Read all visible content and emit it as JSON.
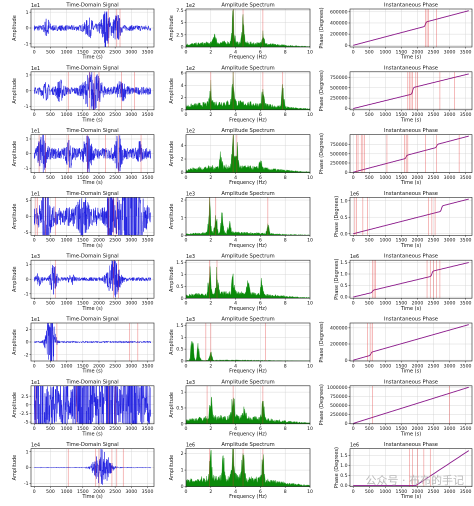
{
  "watermark": "公众号 · 布布的手记",
  "colors": {
    "time": "#1f1fe0",
    "spec": "#0a8a0a",
    "phase": "#8b1a8b",
    "marker": "#e03030",
    "grid": "#d0d0d0"
  },
  "chart_data": [
    {
      "type": "line",
      "title": "Time-Domain Signal",
      "xlabel": "Time (s)",
      "ylabel": "Amplitude",
      "exp": "1e1",
      "xlim": [
        -100,
        3700
      ],
      "ylim": [
        -1.2,
        1.2
      ],
      "xticks": [
        0,
        500,
        1000,
        1500,
        2000,
        2500,
        3000,
        3500
      ],
      "yticks": [
        -1,
        0,
        1
      ],
      "burst": [
        [
          2200,
          0.9,
          150
        ],
        [
          2550,
          0.7,
          120
        ],
        [
          400,
          0.5,
          80
        ],
        [
          1700,
          0.4,
          150
        ]
      ],
      "base": 0.15,
      "markers": [
        2300,
        2550,
        2650
      ]
    },
    {
      "type": "bar",
      "title": "Amplitude Spectrum",
      "xlabel": "Frequency (Hz)",
      "ylabel": "Amplitude",
      "exp": "1e2",
      "xlim": [
        0,
        10
      ],
      "ylim": [
        0,
        7.8
      ],
      "xticks": [
        0,
        2,
        4,
        6,
        8,
        10
      ],
      "yticks": [
        0,
        2.5,
        5,
        7.5
      ],
      "peaks": [
        [
          3.8,
          7.2
        ],
        [
          4.6,
          5.5
        ],
        [
          6.2,
          4.0
        ],
        [
          2.3,
          3.0
        ]
      ],
      "base": 1.3,
      "markers": [
        3.8,
        4.6,
        6.2
      ]
    },
    {
      "type": "line",
      "title": "Instantaneous Phase",
      "xlabel": "Time (s)",
      "ylabel": "Phase (Degrees)",
      "exp": "",
      "xlim": [
        -100,
        3700
      ],
      "ylim": [
        -30000,
        650000
      ],
      "xticks": [
        0,
        500,
        1000,
        1500,
        2000,
        2500,
        3000,
        3500
      ],
      "yticks": [
        0,
        200000,
        400000,
        600000
      ],
      "phase_end": 620000,
      "jumps": [
        [
          2250,
          0.12
        ]
      ],
      "markers": [
        2250,
        2300,
        2350,
        2600
      ]
    },
    {
      "type": "line",
      "title": "Time-Domain Signal",
      "xlabel": "Time (s)",
      "ylabel": "Amplitude",
      "exp": "1e1",
      "xlim": [
        -100,
        3700
      ],
      "ylim": [
        -1.2,
        1.2
      ],
      "xticks": [
        0,
        500,
        1000,
        1500,
        2000,
        2500,
        3000,
        3500
      ],
      "yticks": [
        -1,
        0,
        1
      ],
      "burst": [
        [
          1800,
          1.0,
          250
        ],
        [
          800,
          0.45,
          120
        ],
        [
          2700,
          0.4,
          150
        ],
        [
          350,
          0.35,
          100
        ]
      ],
      "base": 0.2,
      "markers": [
        1050,
        1700,
        1850,
        2000,
        2700,
        3100
      ]
    },
    {
      "type": "bar",
      "title": "Amplitude Spectrum",
      "xlabel": "Frequency (Hz)",
      "ylabel": "Amplitude",
      "exp": "1e2",
      "xlim": [
        0,
        10
      ],
      "ylim": [
        0,
        6.2
      ],
      "xticks": [
        0,
        2,
        4,
        6,
        8,
        10
      ],
      "yticks": [
        0,
        2,
        4,
        6
      ],
      "peaks": [
        [
          3.8,
          5.8
        ],
        [
          2.0,
          3.5
        ],
        [
          7.8,
          4.5
        ],
        [
          6.2,
          3.0
        ]
      ],
      "base": 1.6,
      "markers": [
        2.0,
        3.8,
        6.2,
        7.8
      ]
    },
    {
      "type": "line",
      "title": "Instantaneous Phase",
      "xlabel": "Time (s)",
      "ylabel": "Phase (Degrees)",
      "exp": "",
      "xlim": [
        -100,
        3700
      ],
      "ylim": [
        -30000,
        880000
      ],
      "xticks": [
        0,
        500,
        1000,
        1500,
        2000,
        2500,
        3000,
        3500
      ],
      "yticks": [
        0,
        250000,
        500000,
        750000
      ],
      "phase_end": 830000,
      "jumps": [
        [
          1850,
          0.18
        ]
      ],
      "markers": [
        1700,
        1750,
        1800,
        1850,
        1950,
        2000,
        2700,
        3150
      ]
    },
    {
      "type": "line",
      "title": "Time-Domain Signal",
      "xlabel": "Time (s)",
      "ylabel": "Amplitude",
      "exp": "1e1",
      "xlim": [
        -100,
        3700
      ],
      "ylim": [
        -1.3,
        1.3
      ],
      "xticks": [
        0,
        500,
        1000,
        1500,
        2000,
        2500,
        3000,
        3500
      ],
      "yticks": [
        -1,
        0,
        1
      ],
      "burst": [
        [
          250,
          0.9,
          120
        ],
        [
          1650,
          0.85,
          120
        ],
        [
          2600,
          0.85,
          110
        ],
        [
          1100,
          0.5,
          120
        ],
        [
          3250,
          0.4,
          80
        ]
      ],
      "base": 0.3,
      "markers": [
        150,
        350,
        1050,
        1650,
        2200,
        2600,
        3300
      ]
    },
    {
      "type": "bar",
      "title": "Amplitude Spectrum",
      "xlabel": "Frequency (Hz)",
      "ylabel": "Amplitude",
      "exp": "1e2",
      "xlim": [
        0,
        10
      ],
      "ylim": [
        0,
        5.6
      ],
      "xticks": [
        0,
        2,
        4,
        6,
        8,
        10
      ],
      "yticks": [
        0,
        2,
        4
      ],
      "peaks": [
        [
          3.8,
          5.2
        ],
        [
          4.1,
          4.0
        ],
        [
          2.8,
          2.5
        ],
        [
          6.0,
          1.8
        ]
      ],
      "base": 1.2,
      "markers": [
        3.8,
        4.1
      ]
    },
    {
      "type": "line",
      "title": "Instantaneous Phase",
      "xlabel": "Time (s)",
      "ylabel": "Phase (Degrees)",
      "exp": "",
      "xlim": [
        -100,
        3700
      ],
      "ylim": [
        -10000,
        1020000
      ],
      "xticks": [
        0,
        500,
        1000,
        1500,
        2000,
        2500,
        3000,
        3500
      ],
      "yticks": [
        0,
        250000,
        500000,
        750000
      ],
      "phase_end": 980000,
      "jumps": [
        [
          1650,
          0.08
        ],
        [
          2600,
          0.08
        ]
      ],
      "markers": [
        100,
        150,
        250,
        300,
        350,
        1050,
        1600,
        1650,
        1700,
        2250,
        2600,
        3300
      ]
    },
    {
      "type": "line",
      "title": "Time-Domain Signal",
      "xlabel": "Time (s)",
      "ylabel": "Amplitude",
      "exp": "1e1",
      "xlim": [
        -100,
        3700
      ],
      "ylim": [
        -6,
        6
      ],
      "xticks": [
        0,
        500,
        1000,
        1500,
        2000,
        2500,
        3000,
        3500
      ],
      "yticks": [
        -5,
        0,
        5
      ],
      "burst": [
        [
          2950,
          4.2,
          300
        ],
        [
          350,
          2.0,
          120
        ],
        [
          2350,
          2.2,
          80
        ],
        [
          1500,
          0.8,
          150
        ]
      ],
      "base": 0.5,
      "markers": [
        50,
        100,
        350,
        650,
        2300,
        2450,
        2550
      ]
    },
    {
      "type": "bar",
      "title": "Amplitude Spectrum",
      "xlabel": "Frequency (Hz)",
      "ylabel": "Amplitude",
      "exp": "1e3",
      "xlim": [
        0,
        10
      ],
      "ylim": [
        0,
        2.15
      ],
      "xticks": [
        0,
        2,
        4,
        6,
        8,
        10
      ],
      "yticks": [
        0,
        1,
        2
      ],
      "peaks": [
        [
          1.9,
          2.0
        ],
        [
          2.4,
          1.6
        ],
        [
          2.9,
          1.3
        ],
        [
          3.5,
          0.9
        ],
        [
          6.6,
          0.7
        ]
      ],
      "base": 0.22,
      "markers": [
        1.9,
        2.4,
        6.6
      ]
    },
    {
      "type": "line",
      "title": "Instantaneous Phase",
      "xlabel": "Time (s)",
      "ylabel": "Phase (Degrees)",
      "exp": "1e6",
      "xlim": [
        -100,
        3700
      ],
      "ylim": [
        -0.05,
        1.1
      ],
      "xticks": [
        0,
        500,
        1000,
        1500,
        2000,
        2500,
        3000,
        3500
      ],
      "yticks": [
        0,
        0.5,
        1.0
      ],
      "yfmt": 1,
      "phase_end": 1.05,
      "jumps": [
        [
          2750,
          0.15
        ]
      ],
      "markers": [
        50,
        100,
        300,
        450,
        2350,
        2450,
        2550
      ]
    },
    {
      "type": "line",
      "title": "Time-Domain Signal",
      "xlabel": "Time (s)",
      "ylabel": "Amplitude",
      "exp": "1e3",
      "xlim": [
        -100,
        3700
      ],
      "ylim": [
        -1.3,
        1.3
      ],
      "xticks": [
        0,
        500,
        1000,
        1500,
        2000,
        2500,
        3000,
        3500
      ],
      "yticks": [
        -1,
        0,
        1
      ],
      "burst": [
        [
          2450,
          1.0,
          200
        ],
        [
          600,
          0.8,
          100
        ],
        [
          150,
          0.3,
          80
        ],
        [
          1150,
          0.25,
          80
        ]
      ],
      "base": 0.1,
      "markers": [
        650,
        2450,
        2600
      ]
    },
    {
      "type": "bar",
      "title": "Amplitude Spectrum",
      "xlabel": "Frequency (Hz)",
      "ylabel": "Amplitude",
      "exp": "1e3",
      "xlim": [
        0,
        10
      ],
      "ylim": [
        0,
        1.6
      ],
      "xticks": [
        0,
        2,
        4,
        6,
        8,
        10
      ],
      "yticks": [
        0,
        0.5,
        1.0,
        1.5
      ],
      "peaks": [
        [
          1.9,
          1.5
        ],
        [
          2.5,
          1.25
        ],
        [
          3.8,
          1.0
        ],
        [
          5.0,
          0.6
        ],
        [
          6.1,
          0.7
        ]
      ],
      "base": 0.3,
      "markers": [
        1.9,
        2.5
      ]
    },
    {
      "type": "line",
      "title": "Instantaneous Phase",
      "xlabel": "Time (s)",
      "ylabel": "Phase (Degrees)",
      "exp": "1e6",
      "xlim": [
        -100,
        3700
      ],
      "ylim": [
        -0.05,
        1.6
      ],
      "xticks": [
        0,
        500,
        1000,
        1500,
        2000,
        2500,
        3000,
        3500
      ],
      "yticks": [
        0,
        0.5,
        1.0,
        1.5
      ],
      "yfmt": 1,
      "phase_end": 1.5,
      "jumps": [
        [
          600,
          0.06
        ],
        [
          2450,
          0.14
        ]
      ],
      "markers": [
        600,
        650,
        700,
        2300,
        2400,
        2500,
        2600,
        2700
      ]
    },
    {
      "type": "line",
      "title": "Time-Domain Signal",
      "xlabel": "Time (s)",
      "ylabel": "Amplitude",
      "exp": "1e1",
      "xlim": [
        -100,
        3700
      ],
      "ylim": [
        -3,
        3
      ],
      "xticks": [
        0,
        500,
        1000,
        1500,
        2000,
        2500,
        3000,
        3500
      ],
      "yticks": [
        -2,
        0,
        2
      ],
      "burst": [
        [
          500,
          2.2,
          120
        ]
      ],
      "base": 0.05,
      "markers": [
        700,
        2950,
        3200
      ]
    },
    {
      "type": "bar",
      "title": "Amplitude Spectrum",
      "xlabel": "Frequency (Hz)",
      "ylabel": "Amplitude",
      "exp": "1e3",
      "xlim": [
        0,
        10
      ],
      "ylim": [
        0,
        1.6
      ],
      "xticks": [
        0,
        2,
        4,
        6,
        8,
        10
      ],
      "yticks": [
        0,
        0.5,
        1.0,
        1.5
      ],
      "peaks": [
        [
          0.5,
          1.5
        ],
        [
          1.0,
          0.9
        ],
        [
          2.0,
          0.5
        ]
      ],
      "base": 0.05,
      "markers": [
        1.6,
        2.0,
        6.4
      ]
    },
    {
      "type": "line",
      "title": "Instantaneous Phase",
      "xlabel": "Time (s)",
      "ylabel": "Phase (Degrees)",
      "exp": "",
      "xlim": [
        -100,
        3700
      ],
      "ylim": [
        -10000,
        460000
      ],
      "xticks": [
        0,
        500,
        1000,
        1500,
        2000,
        2500,
        3000,
        3500
      ],
      "yticks": [
        0,
        200000,
        400000
      ],
      "phase_end": 440000,
      "jumps": [
        [
          550,
          0.08
        ]
      ],
      "markers": [
        450,
        550,
        600
      ]
    },
    {
      "type": "line",
      "title": "Time-Domain Signal",
      "xlabel": "Time (s)",
      "ylabel": "Amplitude",
      "exp": "1e1",
      "xlim": [
        -100,
        3700
      ],
      "ylim": [
        -5.5,
        5.5
      ],
      "xticks": [
        0,
        500,
        1000,
        1500,
        2000,
        2500,
        3000,
        3500
      ],
      "yticks": [
        -5,
        -2.5,
        0,
        2.5
      ],
      "burst": [
        [
          150,
          3.6,
          120
        ],
        [
          1500,
          2.6,
          200
        ],
        [
          2300,
          2.6,
          150
        ],
        [
          3000,
          2.8,
          150
        ]
      ],
      "base": 1.2,
      "markers": [
        50,
        1300,
        2300,
        2500
      ]
    },
    {
      "type": "bar",
      "title": "Amplitude Spectrum",
      "xlabel": "Frequency (Hz)",
      "ylabel": "Amplitude",
      "exp": "1e3",
      "xlim": [
        0,
        10
      ],
      "ylim": [
        0,
        1.2
      ],
      "xticks": [
        0,
        2,
        4,
        6,
        8,
        10
      ],
      "yticks": [
        0,
        0.5,
        1.0
      ],
      "peaks": [
        [
          3.8,
          1.1
        ],
        [
          2.0,
          0.8
        ],
        [
          6.2,
          0.75
        ],
        [
          4.7,
          0.65
        ]
      ],
      "base": 0.3,
      "markers": [
        1.7,
        3.8,
        6.2
      ]
    },
    {
      "type": "line",
      "title": "Instantaneous Phase",
      "xlabel": "Time (s)",
      "ylabel": "Phase (Degrees)",
      "exp": "",
      "xlim": [
        -100,
        3700
      ],
      "ylim": [
        -10000,
        1040000
      ],
      "xticks": [
        0,
        500,
        1000,
        1500,
        2000,
        2500,
        3000,
        3500
      ],
      "yticks": [
        0,
        250000,
        500000,
        750000,
        1000000
      ],
      "phase_end": 1000000,
      "jumps": [],
      "markers": [
        600,
        3000
      ]
    },
    {
      "type": "line",
      "title": "Time-Domain Signal",
      "xlabel": "Time (s)",
      "ylabel": "Amplitude",
      "exp": "1e4",
      "xlim": [
        -100,
        3700
      ],
      "ylim": [
        -1.2,
        1.2
      ],
      "xticks": [
        0,
        500,
        1000,
        1500,
        2000,
        2500,
        3000,
        3500
      ],
      "yticks": [
        -1,
        0,
        1
      ],
      "burst": [
        [
          2100,
          1.0,
          250
        ]
      ],
      "base": 0.02,
      "markers": [
        1050,
        1900,
        2000,
        2400,
        2550,
        2750
      ]
    },
    {
      "type": "bar",
      "title": "Amplitude Spectrum",
      "xlabel": "Frequency (Hz)",
      "ylabel": "Amplitude",
      "exp": "1e6",
      "xlim": [
        0,
        10
      ],
      "ylim": [
        0,
        2.3
      ],
      "xticks": [
        0,
        2,
        4,
        6,
        8,
        10
      ],
      "yticks": [
        0,
        1,
        2
      ],
      "peaks": [
        [
          2.0,
          2.0
        ],
        [
          3.8,
          2.1
        ],
        [
          4.6,
          1.8
        ],
        [
          6.2,
          1.6
        ],
        [
          3.0,
          1.4
        ]
      ],
      "base": 0.8,
      "markers": [
        1.9,
        3.8,
        4.6,
        6.2
      ]
    },
    {
      "type": "line",
      "title": "Instantaneous Phase",
      "xlabel": "Time (s)",
      "ylabel": "Phase (Degrees)",
      "exp": "1e6",
      "xlim": [
        -100,
        3700
      ],
      "ylim": [
        -0.05,
        1.85
      ],
      "xticks": [
        0,
        500,
        1000,
        1500,
        2000,
        2500,
        3000,
        3500
      ],
      "yticks": [
        0,
        0.5,
        1.0,
        1.5
      ],
      "yfmt": 1,
      "phase_end": 1.75,
      "flat_until": 1950,
      "jumps": [],
      "markers": [
        1750,
        1850,
        2000,
        2200,
        2400
      ]
    }
  ]
}
